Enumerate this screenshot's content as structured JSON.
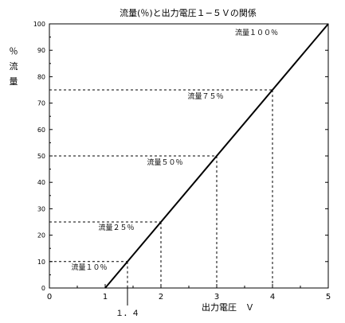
{
  "chart_data": {
    "type": "line",
    "title": "流量(％)と出力電圧１−５Ｖの関係",
    "xlabel": "出力電圧　Ｖ",
    "ylabel_lines": [
      "％",
      "流",
      "量"
    ],
    "xlim": [
      0,
      5
    ],
    "ylim": [
      0,
      100
    ],
    "x_ticks": [
      "0",
      "1",
      "2",
      "3",
      "4",
      "5"
    ],
    "y_ticks": [
      "0",
      "10",
      "20",
      "30",
      "40",
      "50",
      "60",
      "70",
      "80",
      "90",
      "100"
    ],
    "series": [
      {
        "x": [
          1,
          5
        ],
        "y": [
          0,
          100
        ]
      }
    ],
    "annotations": [
      {
        "label": "流量１０％",
        "x": 1.4,
        "y": 10
      },
      {
        "label": "流量２５％",
        "x": 2,
        "y": 25
      },
      {
        "label": "流量５０％",
        "x": 3,
        "y": 50
      },
      {
        "label": "流量７５％",
        "x": 4,
        "y": 75
      },
      {
        "label": "流量１００％",
        "x": 5,
        "y": 100
      }
    ],
    "extra_x_label": {
      "text": "１．４",
      "x": 1.4
    },
    "grid": false
  }
}
